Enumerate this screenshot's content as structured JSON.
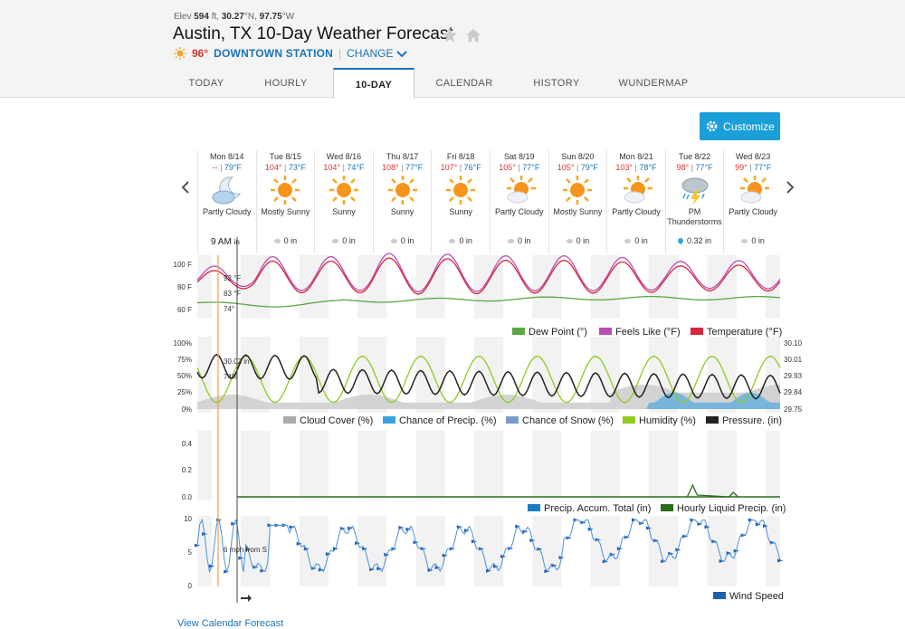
{
  "header": {
    "elev_label": "Elev",
    "elev_value": "594",
    "elev_unit": "ft,",
    "lat": "30.27",
    "lat_unit": "°N,",
    "lon": "97.75",
    "lon_unit": "°W",
    "title": "Austin, TX 10-Day Weather Forecast",
    "current_temp": "96°",
    "station": "DOWNTOWN STATION",
    "change_label": "CHANGE"
  },
  "tabs": [
    {
      "label": "TODAY"
    },
    {
      "label": "HOURLY"
    },
    {
      "label": "10-DAY",
      "active": true
    },
    {
      "label": "CALENDAR"
    },
    {
      "label": "HISTORY"
    },
    {
      "label": "WUNDERMAP"
    }
  ],
  "customize_label": "Customize",
  "days": [
    {
      "date": "Mon 8/14",
      "hi": "--",
      "lo": "79°F",
      "icon": "partly-cloudy-night-icon",
      "cond": "Partly Cloudy",
      "precip": ""
    },
    {
      "date": "Tue 8/15",
      "hi": "104°",
      "lo": "73°F",
      "icon": "sunny-icon",
      "cond": "Mostly Sunny",
      "precip": "0 in"
    },
    {
      "date": "Wed 8/16",
      "hi": "104°",
      "lo": "74°F",
      "icon": "sunny-icon",
      "cond": "Sunny",
      "precip": "0 in"
    },
    {
      "date": "Thu 8/17",
      "hi": "108°",
      "lo": "77°F",
      "icon": "sunny-icon",
      "cond": "Sunny",
      "precip": "0 in"
    },
    {
      "date": "Fri 8/18",
      "hi": "107°",
      "lo": "76°F",
      "icon": "sunny-icon",
      "cond": "Sunny",
      "precip": "0 in"
    },
    {
      "date": "Sat 8/19",
      "hi": "105°",
      "lo": "77°F",
      "icon": "partly-cloudy-icon",
      "cond": "Partly Cloudy",
      "precip": "0 in"
    },
    {
      "date": "Sun 8/20",
      "hi": "105°",
      "lo": "79°F",
      "icon": "sunny-icon",
      "cond": "Mostly Sunny",
      "precip": "0 in"
    },
    {
      "date": "Mon 8/21",
      "hi": "103°",
      "lo": "78°F",
      "icon": "partly-cloudy-icon",
      "cond": "Partly Cloudy",
      "precip": "0 in"
    },
    {
      "date": "Tue 8/22",
      "hi": "98°",
      "lo": "77°F",
      "icon": "thunderstorm-icon",
      "cond": "PM Thunderstorms",
      "precip": "0.32 in"
    },
    {
      "date": "Wed 8/23",
      "hi": "99°",
      "lo": "77°F",
      "icon": "partly-cloudy-icon",
      "cond": "Partly Cloudy",
      "precip": "0 in"
    }
  ],
  "now_label": "9 AM",
  "now_unit": "in",
  "temp_chart": {
    "y_ticks": [
      "100 F",
      "80 F",
      "60 F"
    ],
    "readouts": [
      "92 °F",
      "83 °F",
      "74°"
    ],
    "legend": [
      "Dew Point (°)",
      "Feels Like (°F)",
      "Temperature (°F)"
    ],
    "colors": {
      "dew": "#5aa843",
      "feels": "#b84fb5",
      "temp": "#d7263d"
    }
  },
  "cloud_chart": {
    "y_left": [
      "100%",
      "75%",
      "50%",
      "25%",
      "0%"
    ],
    "y_right": [
      "30.10",
      "30.01",
      "29.93",
      "29.84",
      "29.75"
    ],
    "readouts": [
      "30.02 in",
      "74%"
    ],
    "legend": [
      "Cloud Cover (%)",
      "Chance of Precip. (%)",
      "Chance of Snow (%)",
      "Humidity (%)",
      "Pressure. (in)"
    ],
    "colors": {
      "cloud": "#aaaaaa",
      "precip": "#3aa3e0",
      "snow": "#7a9cc9",
      "humidity": "#8fcc1f",
      "pressure": "#222222"
    }
  },
  "precip_chart": {
    "y_ticks": [
      "0.4",
      "0.2",
      "0.0"
    ],
    "legend": [
      "Precip. Accum. Total (in)",
      "Hourly Liquid Precip. (in)"
    ],
    "colors": {
      "accum": "#1a7fc0",
      "hourly": "#2a6e1c"
    }
  },
  "wind_chart": {
    "y_ticks": [
      "10",
      "5",
      "0"
    ],
    "readout": "6 mph from S",
    "legend": [
      "Wind Speed"
    ],
    "colors": {
      "wind": "#1f5fb0"
    }
  },
  "calendar_link": "View Calendar Forecast"
}
